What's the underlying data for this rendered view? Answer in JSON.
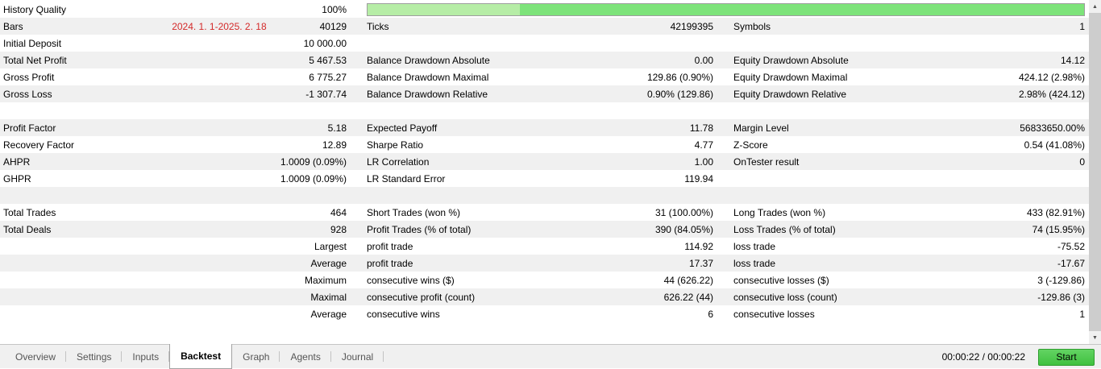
{
  "colors": {
    "row_stripe": "#f0f0f0",
    "annotation_red": "#d42a2a",
    "progress_light": "#b6eda6",
    "progress_main": "#7de37a",
    "start_button_light": "#63d463",
    "start_button_green": "#3fc13f"
  },
  "progress": {
    "light_pct": 21.3,
    "main_pct": 78.7
  },
  "rows": [
    {
      "c1l": "History Quality",
      "c1v": "100%",
      "progress": true
    },
    {
      "c1l": "Bars",
      "annot": "2024. 1. 1-2025. 2. 18",
      "c1v": "40129",
      "c2l": "Ticks",
      "c2v": "42199395",
      "c3l": "Symbols",
      "c3v": "1"
    },
    {
      "c1l": "Initial Deposit",
      "c1v": "10 000.00"
    },
    {
      "c1l": "Total Net Profit",
      "c1v": "5 467.53",
      "c2l": "Balance Drawdown Absolute",
      "c2v": "0.00",
      "c3l": "Equity Drawdown Absolute",
      "c3v": "14.12"
    },
    {
      "c1l": "Gross Profit",
      "c1v": "6 775.27",
      "c2l": "Balance Drawdown Maximal",
      "c2v": "129.86 (0.90%)",
      "c3l": "Equity Drawdown Maximal",
      "c3v": "424.12 (2.98%)"
    },
    {
      "c1l": "Gross Loss",
      "c1v": "-1 307.74",
      "c2l": "Balance Drawdown Relative",
      "c2v": "0.90% (129.86)",
      "c3l": "Equity Drawdown Relative",
      "c3v": "2.98% (424.12)"
    },
    {},
    {
      "c1l": "Profit Factor",
      "c1v": "5.18",
      "c2l": "Expected Payoff",
      "c2v": "11.78",
      "c3l": "Margin Level",
      "c3v": "56833650.00%"
    },
    {
      "c1l": "Recovery Factor",
      "c1v": "12.89",
      "c2l": "Sharpe Ratio",
      "c2v": "4.77",
      "c3l": "Z-Score",
      "c3v": "0.54 (41.08%)"
    },
    {
      "c1l": "AHPR",
      "c1v": "1.0009 (0.09%)",
      "c2l": "LR Correlation",
      "c2v": "1.00",
      "c3l": "OnTester result",
      "c3v": "0"
    },
    {
      "c1l": "GHPR",
      "c1v": "1.0009 (0.09%)",
      "c2l": "LR Standard Error",
      "c2v": "119.94"
    },
    {},
    {
      "c1l": "Total Trades",
      "c1v": "464",
      "c2l": "Short Trades (won %)",
      "c2v": "31 (100.00%)",
      "c3l": "Long Trades (won %)",
      "c3v": "433 (82.91%)"
    },
    {
      "c1l": "Total Deals",
      "c1v": "928",
      "c2l": "Profit Trades (% of total)",
      "c2v": "390 (84.05%)",
      "c3l": "Loss Trades (% of total)",
      "c3v": "74 (15.95%)"
    },
    {
      "c1v": "Largest",
      "c2l": "profit trade",
      "c2v": "114.92",
      "c3l": "loss trade",
      "c3v": "-75.52"
    },
    {
      "c1v": "Average",
      "c2l": "profit trade",
      "c2v": "17.37",
      "c3l": "loss trade",
      "c3v": "-17.67"
    },
    {
      "c1v": "Maximum",
      "c2l": "consecutive wins ($)",
      "c2v": "44 (626.22)",
      "c3l": "consecutive losses ($)",
      "c3v": "3 (-129.86)"
    },
    {
      "c1v": "Maximal",
      "c2l": "consecutive profit (count)",
      "c2v": "626.22 (44)",
      "c3l": "consecutive loss (count)",
      "c3v": "-129.86 (3)"
    },
    {
      "c1v": "Average",
      "c2l": "consecutive wins",
      "c2v": "6",
      "c3l": "consecutive losses",
      "c3v": "1"
    }
  ],
  "tabs": [
    {
      "label": "Overview",
      "active": false
    },
    {
      "label": "Settings",
      "active": false
    },
    {
      "label": "Inputs",
      "active": false
    },
    {
      "label": "Backtest",
      "active": true
    },
    {
      "label": "Graph",
      "active": false
    },
    {
      "label": "Agents",
      "active": false
    },
    {
      "label": "Journal",
      "active": false
    }
  ],
  "icons": {
    "scroll_up_glyph": "▲",
    "scroll_down_glyph": "▼"
  },
  "statusbar": {
    "time": "00:00:22 / 00:00:22",
    "start_label": "Start"
  }
}
